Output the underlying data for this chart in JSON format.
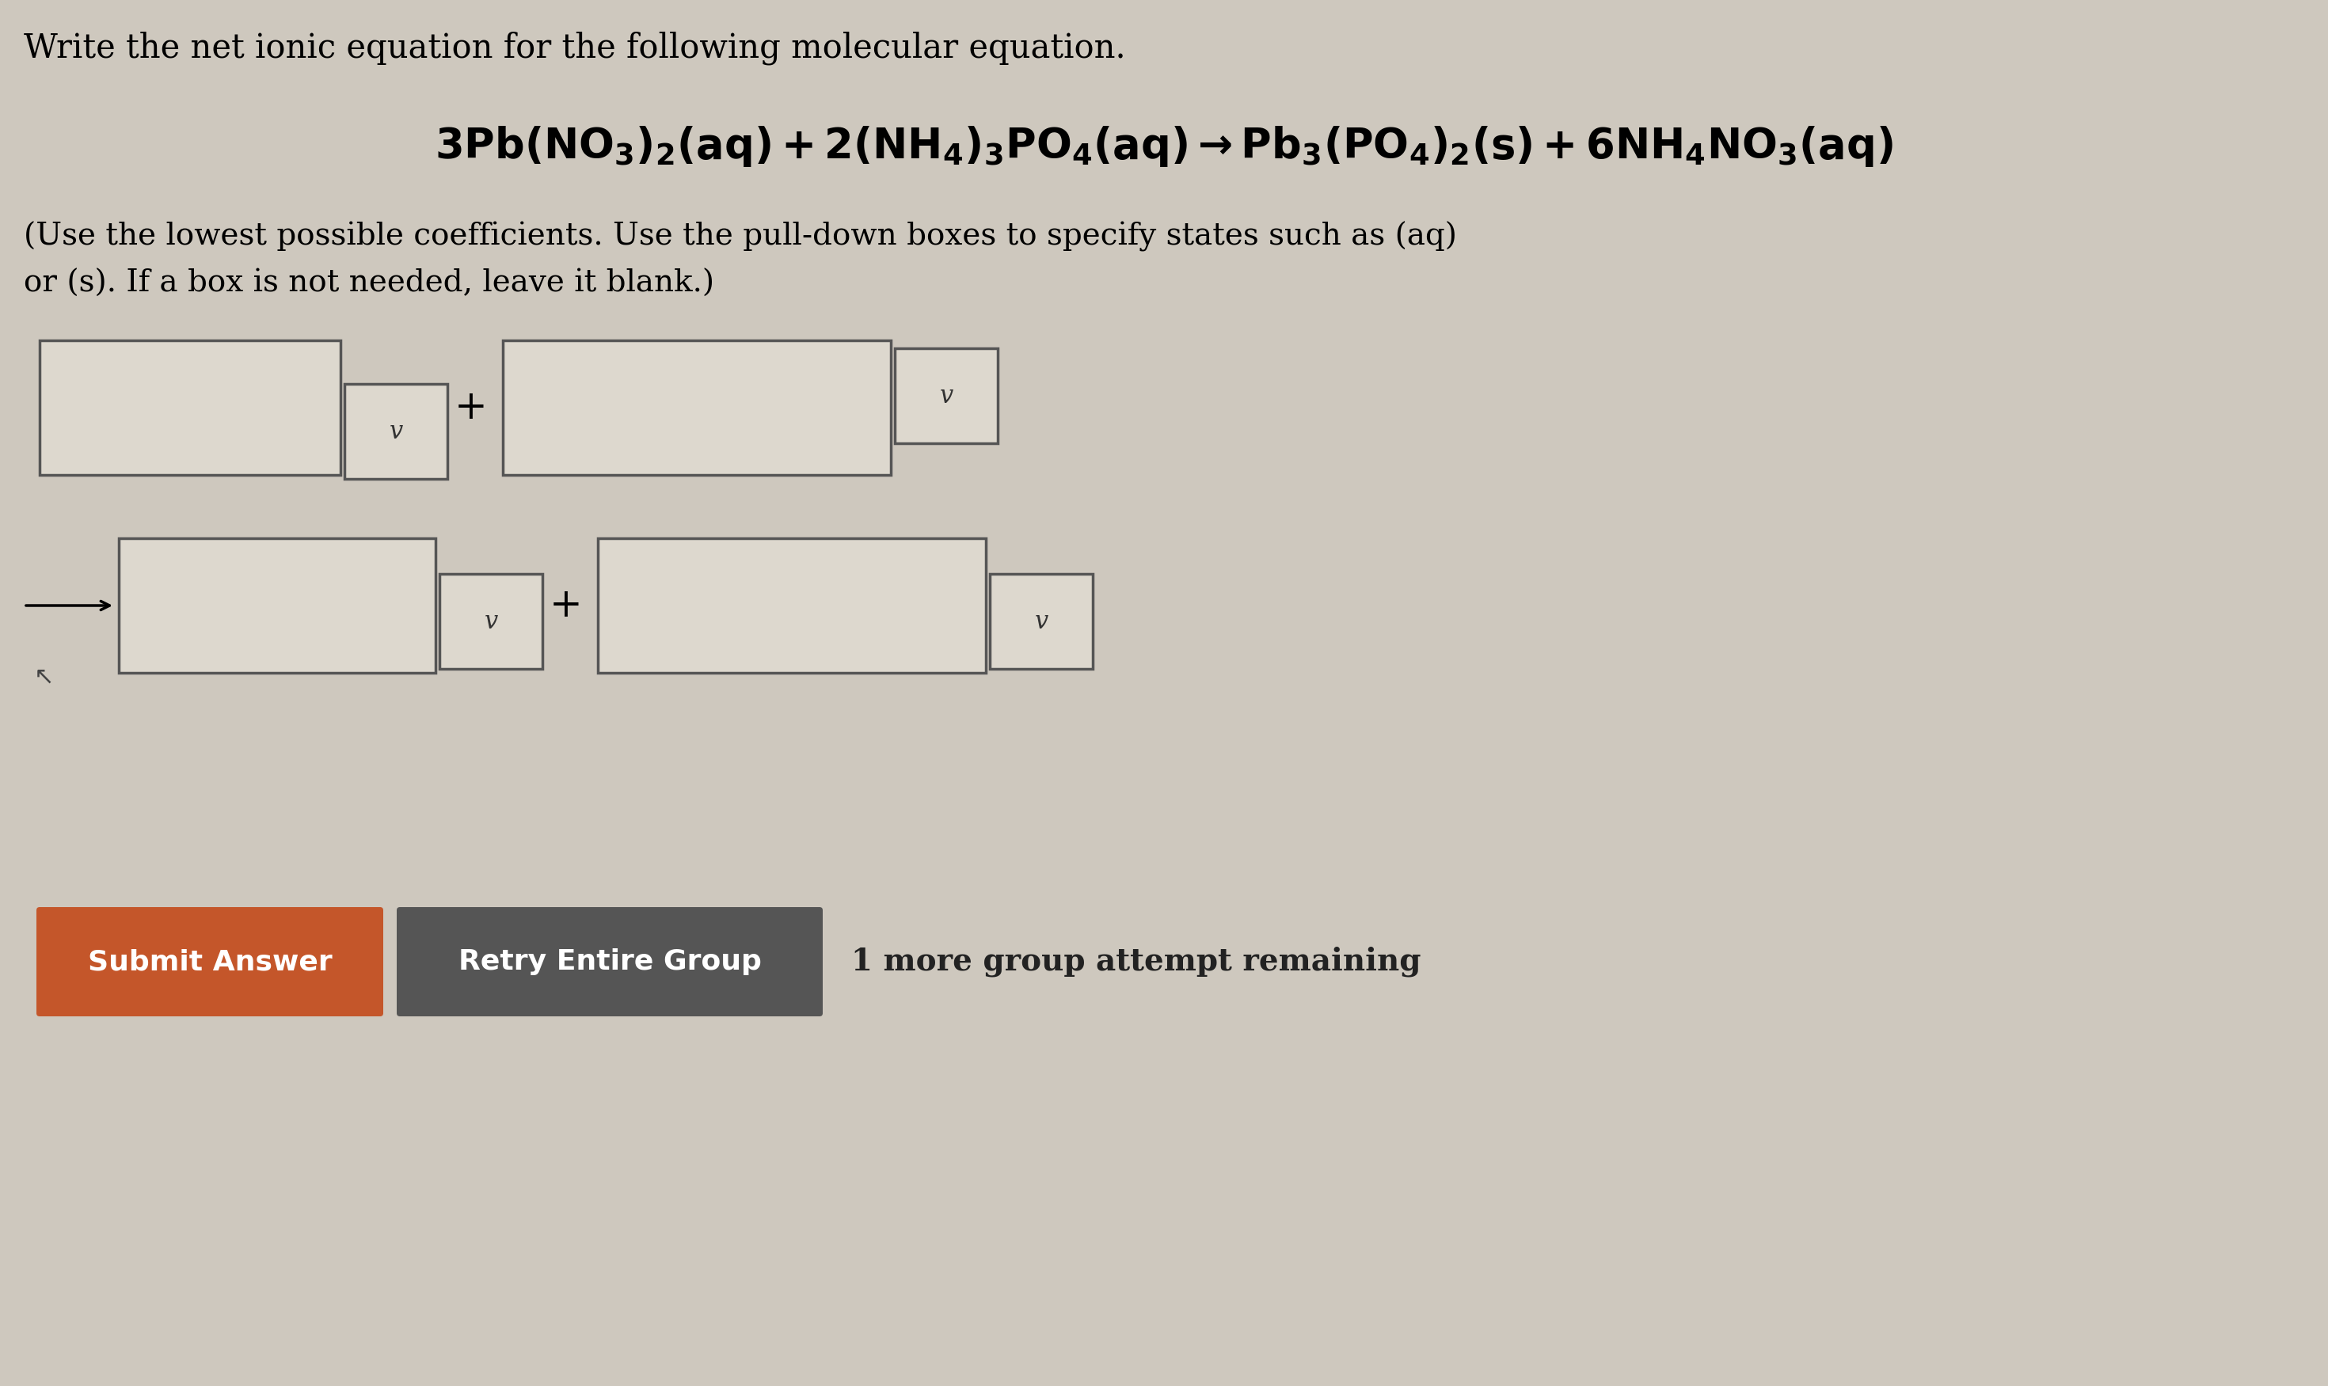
{
  "bg_color": "#cec8be",
  "title_text": "Write the net ionic equation for the following molecular equation.",
  "submit_btn_color": "#c4562a",
  "retry_btn_color": "#555555",
  "submit_btn_text": "Submit Answer",
  "retry_btn_text": "Retry Entire Group",
  "attempt_text": "1 more group attempt remaining",
  "box_face_color": "#ddd8ce",
  "box_edge_color": "#555555",
  "instruction_line1": "(Use the lowest possible coefficients. Use the pull-down boxes to specify states such as (aq)",
  "instruction_line2": "or (s). If a box is not needed, leave it blank.)",
  "title_fontsize": 30,
  "eq_fontsize": 38,
  "instr_fontsize": 28,
  "btn_fontsize": 26,
  "attempt_fontsize": 28,
  "chevron_fontsize": 22,
  "plus_fontsize": 36
}
